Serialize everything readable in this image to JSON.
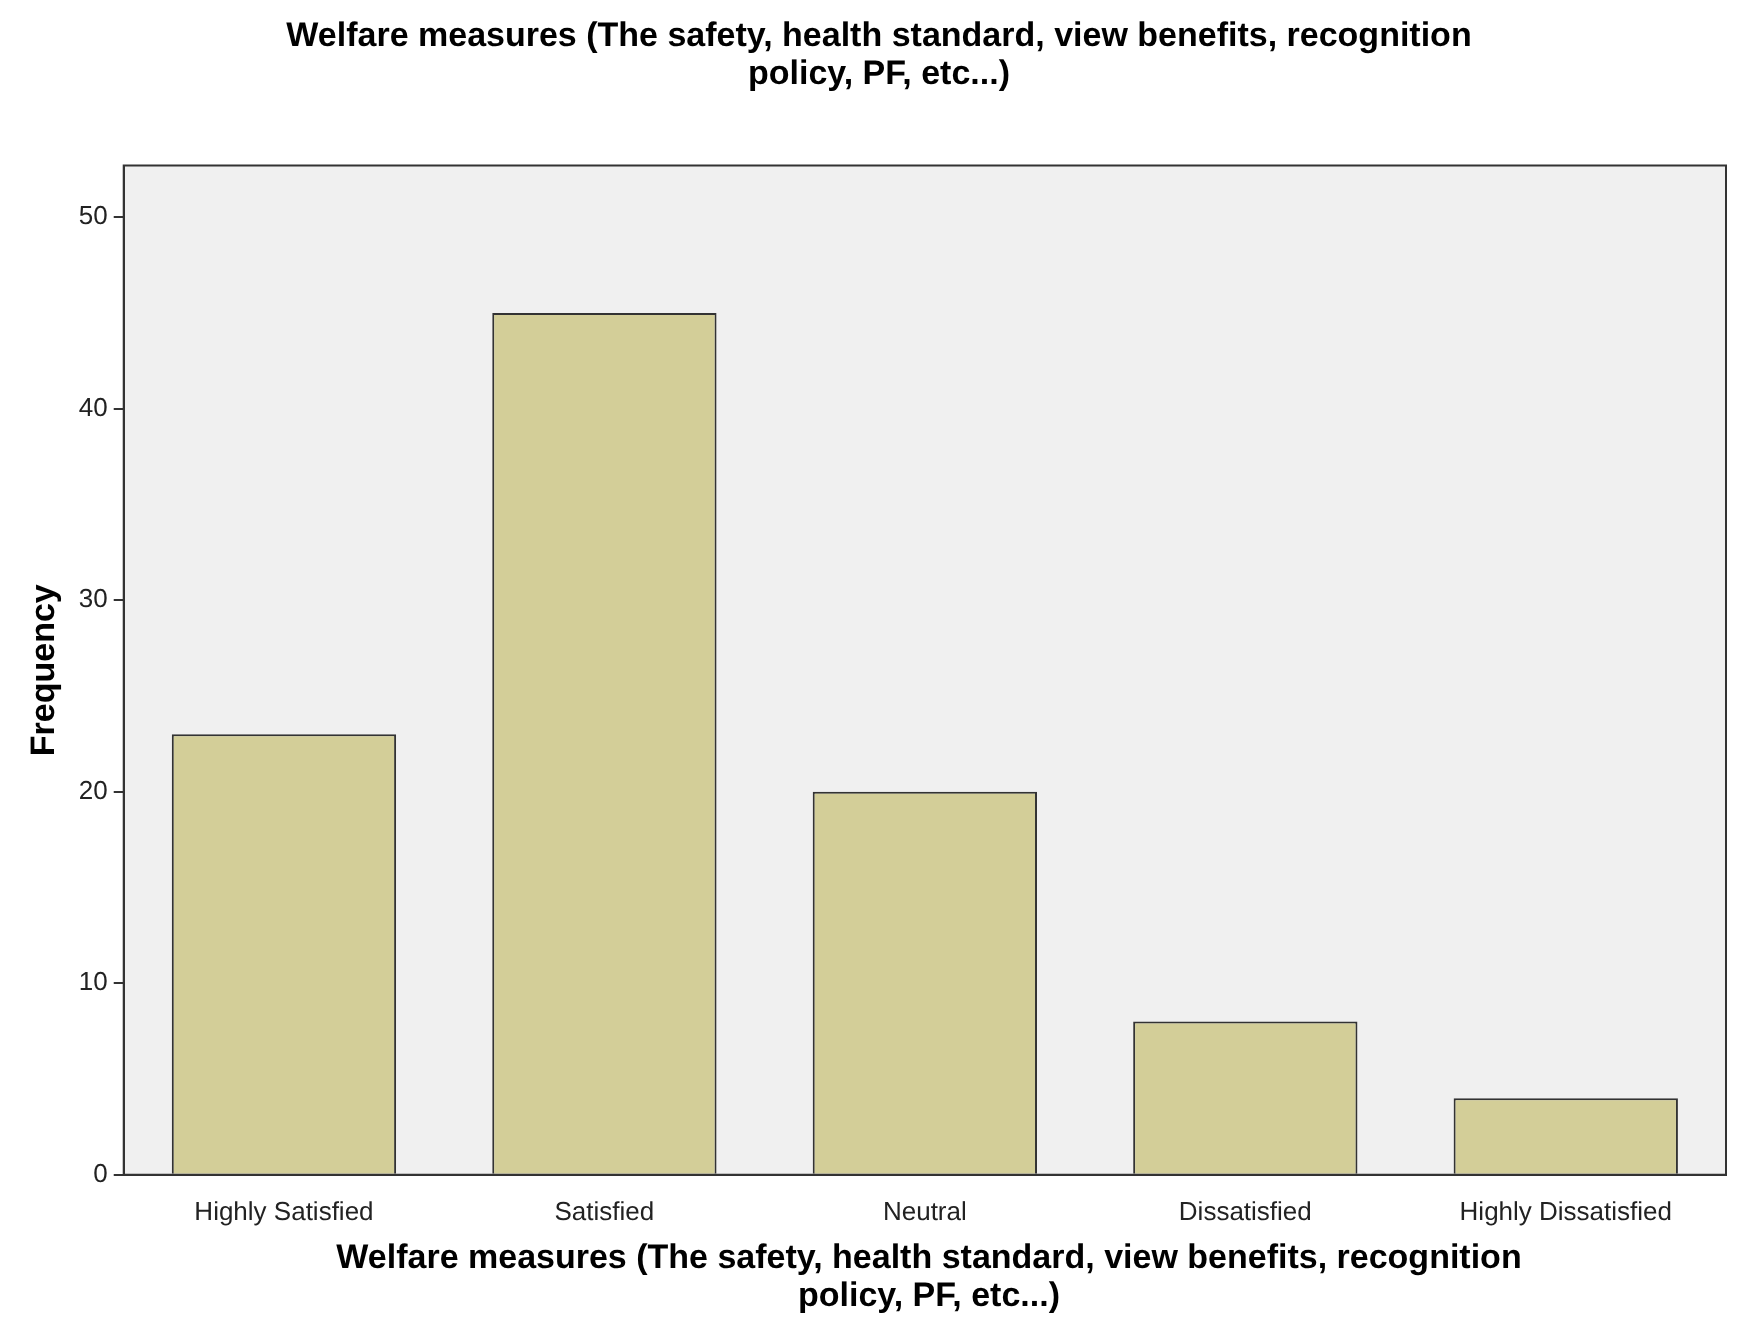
{
  "chart_data": {
    "type": "bar",
    "title": "Welfare measures (The safety, health standard, view benefits, recognition policy, PF, etc...)",
    "xlabel": "Welfare measures (The safety, health standard, view benefits, recognition policy, PF, etc...)",
    "ylabel": "Frequency",
    "categories": [
      "Highly Satisfied",
      "Satisfied",
      "Neutral",
      "Dissatisfied",
      "Highly Dissatisfied"
    ],
    "values": [
      23,
      45,
      20,
      8,
      4
    ],
    "color": "#d3ce98",
    "ylim": [
      0,
      52.7
    ],
    "yticks": [
      0,
      10,
      20,
      30,
      40,
      50
    ]
  }
}
